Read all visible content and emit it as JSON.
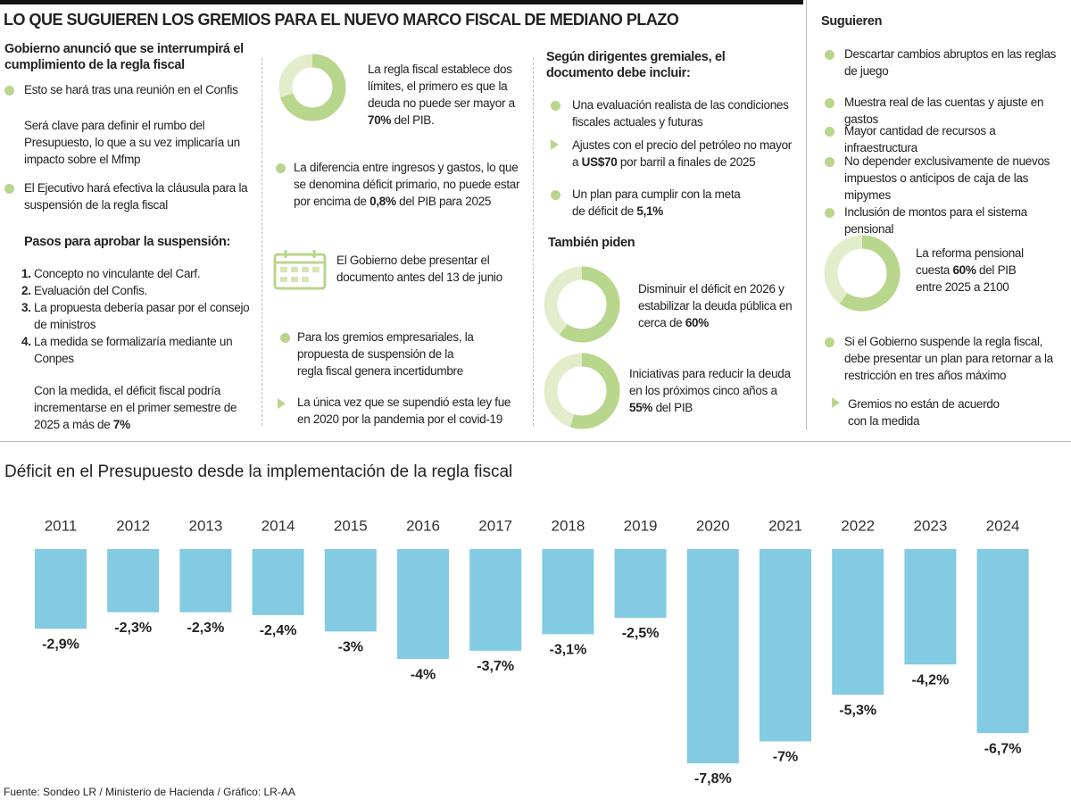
{
  "header": {
    "title": "LO QUE SUGUIEREN LOS GREMIOS PARA EL NUEVO MARCO FISCAL DE MEDIANO PLAZO"
  },
  "left": {
    "heading": "Gobierno anunció que se interrumpirá el cumplimiento de la regla fiscal",
    "bullet_1": "Esto se hará tras una reunión en el Confis",
    "note": "Será clave para definir el rumbo del Presupuesto, lo que a su vez implicaría un impacto sobre el Mfmp",
    "bullet_2": "El Ejecutivo hará efectiva la cláusula para la suspensión de la regla fiscal",
    "steps_title": "Pasos para aprobar la suspensión:",
    "steps": [
      {
        "n": "1.",
        "text": "Concepto no vinculante del Carf."
      },
      {
        "n": "2.",
        "text": "Evaluación del Confis."
      },
      {
        "n": "3.",
        "text": "La propuesta debería pasar por el consejo de ministros"
      },
      {
        "n": "4.",
        "text": "La medida se formalizaría mediante un Conpes"
      }
    ],
    "closing": [
      "Con la medida, el déficit fiscal podría incrementarse en el primer semestre de 2025 a más de ",
      {
        "b": "7%"
      }
    ]
  },
  "middle": {
    "donut": {
      "value": 70,
      "text": [
        "La regla fiscal establece dos límites, el primero es que la deuda no puede ser mayor a ",
        {
          "b": "70%"
        },
        " del PIB."
      ]
    },
    "bullet_1": [
      "La diferencia entre ingresos y gastos, lo que se denomina déficit primario, no puede estar por encima de ",
      {
        "b": "0,8%"
      },
      " del PIB para 2025"
    ],
    "calendar_text": "El Gobierno debe presentar el documento antes del 13 de junio",
    "bullet_2": "Para los gremios empresariales, la propuesta de suspensión de la regla fiscal genera incertidumbre",
    "arrow_1": "La única vez que se supendió esta ley fue en 2020 por la pandemia por el covid-19"
  },
  "right": {
    "heading": "Según dirigentes gremiales, el documento debe incluir:",
    "bullet_1": "Una evaluación realista de las condiciones fiscales actuales y futuras",
    "arrow_1": [
      "Ajustes con el precio del petróleo no mayor a ",
      {
        "b": "US$70"
      },
      " por barril a finales de 2025"
    ],
    "bullet_2": [
      "Un plan para cumplir con la meta de déficit de ",
      {
        "b": "5,1%"
      }
    ],
    "also_title": "También piden",
    "donut_1": {
      "value": 60,
      "text": [
        "Disminuir el déficit en 2026 y estabilizar la deuda pública en cerca de ",
        {
          "b": "60%"
        }
      ]
    },
    "donut_2": {
      "value": 55,
      "text": [
        "Iniciativas para reducir la deuda en los próximos cinco años a ",
        {
          "b": "55%"
        },
        " del PIB"
      ]
    }
  },
  "suggestions": {
    "heading": "Suguieren",
    "items": [
      "Descartar cambios abruptos en las reglas de juego",
      "Muestra real de las cuentas y ajuste en gastos",
      "Mayor cantidad de recursos a infraestructura",
      "No depender exclusivamente de nuevos impuestos o anticipos de caja de las mipymes",
      "Inclusión de montos para el sistema pensional"
    ],
    "donut": {
      "value": 60,
      "text": [
        "La reforma pensional cuesta ",
        {
          "b": "60%"
        },
        " del PIB entre 2025 a 2100"
      ]
    },
    "bullet": "Si el Gobierno suspende la regla fiscal, debe presentar un plan para retornar a la restricción en tres años máximo",
    "arrow": "Gremios no están de acuerdo con la medida"
  },
  "chart_data": {
    "type": "bar",
    "title": "Déficit en el Presupuesto desde la implementación de la regla fiscal",
    "categories": [
      "2011",
      "2012",
      "2013",
      "2014",
      "2015",
      "2016",
      "2017",
      "2018",
      "2019",
      "2020",
      "2021",
      "2022",
      "2023",
      "2024"
    ],
    "values": [
      -2.9,
      -2.3,
      -2.3,
      -2.4,
      -3,
      -4,
      -3.7,
      -3.1,
      -2.5,
      -7.8,
      -7,
      -5.3,
      -4.2,
      -6.7
    ],
    "value_labels": [
      "-2,9%",
      "-2,3%",
      "-2,3%",
      "-2,4%",
      "-3%",
      "-4%",
      "-3,7%",
      "-3,1%",
      "-2,5%",
      "-7,8%",
      "-7%",
      "-5,3%",
      "-4,2%",
      "-6,7%"
    ],
    "color": "#82cbe2"
  },
  "source": "Fuente: Sondeo LR / Ministerio de Hacienda  / Gráfico: LR-AA"
}
